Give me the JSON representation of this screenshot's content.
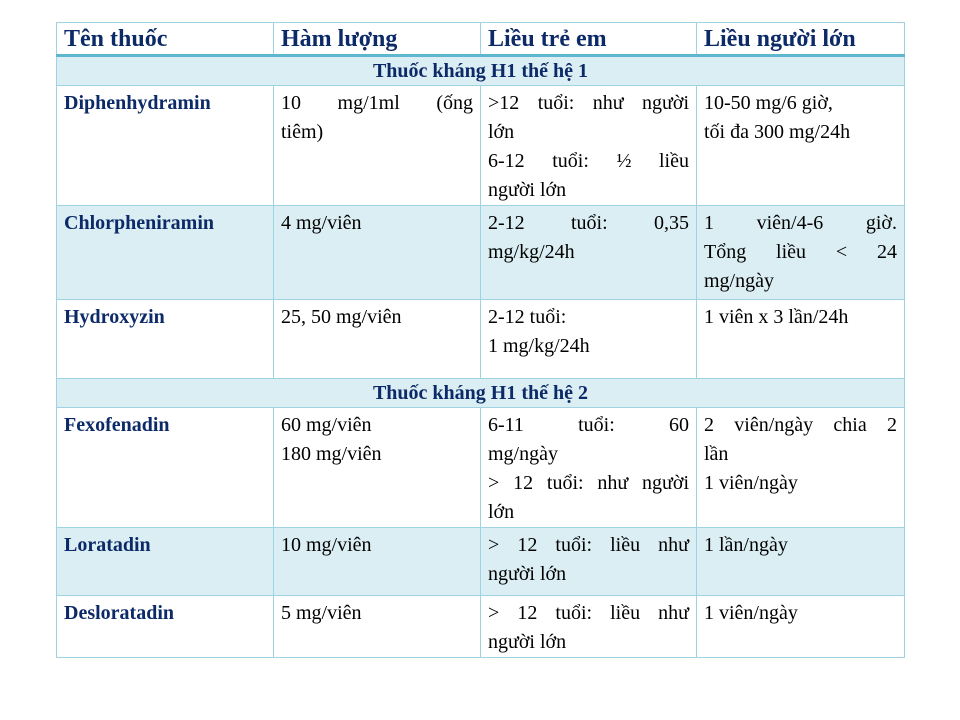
{
  "table": {
    "headers": [
      "Tên thuốc",
      "Hàm lượng",
      "Liều trẻ em",
      "Liều người lớn"
    ],
    "colors": {
      "header_text": "#0c2a68",
      "band": "#daeef3",
      "border": "#9fd3e2"
    },
    "sections": [
      {
        "title": "Thuốc kháng H1 thế hệ 1",
        "rows": [
          {
            "name": "Diphenhydramin",
            "strength": [
              "10 mg/1ml (ống",
              "tiêm)"
            ],
            "child": [
              ">12 tuổi: như người",
              "lớn",
              "6-12 tuổi: ½ liều",
              "người lớn"
            ],
            "adult": [
              "10-50 mg/6 giờ,",
              "tối đa 300 mg/24h"
            ]
          },
          {
            "name": "Chlorpheniramin",
            "strength": [
              "4 mg/viên"
            ],
            "child": [
              "2-12 tuổi: 0,35",
              "mg/kg/24h"
            ],
            "adult": [
              "1 viên/4-6 giờ.",
              "Tổng liều < 24",
              "mg/ngày"
            ]
          },
          {
            "name": "Hydroxyzin",
            "strength": [
              "25, 50 mg/viên"
            ],
            "child": [
              "2-12 tuổi:",
              "1 mg/kg/24h"
            ],
            "adult": [
              "1 viên x 3 lần/24h"
            ]
          }
        ]
      },
      {
        "title": "Thuốc kháng H1 thế hệ 2",
        "rows": [
          {
            "name": "Fexofenadin",
            "strength": [
              "60 mg/viên",
              "180 mg/viên"
            ],
            "child": [
              "6-11 tuổi: 60",
              "mg/ngày",
              "> 12 tuổi: như người",
              "lớn"
            ],
            "adult": [
              "2 viên/ngày chia 2",
              "lần",
              "1 viên/ngày"
            ]
          },
          {
            "name": "Loratadin",
            "strength": [
              "10 mg/viên"
            ],
            "child": [
              "> 12 tuổi: liều như",
              "người lớn"
            ],
            "adult": [
              "1 lần/ngày"
            ]
          },
          {
            "name": "Desloratadin",
            "strength": [
              "5 mg/viên"
            ],
            "child": [
              "> 12 tuổi: liều như",
              "người lớn"
            ],
            "adult": [
              "1 viên/ngày"
            ]
          }
        ]
      }
    ]
  }
}
